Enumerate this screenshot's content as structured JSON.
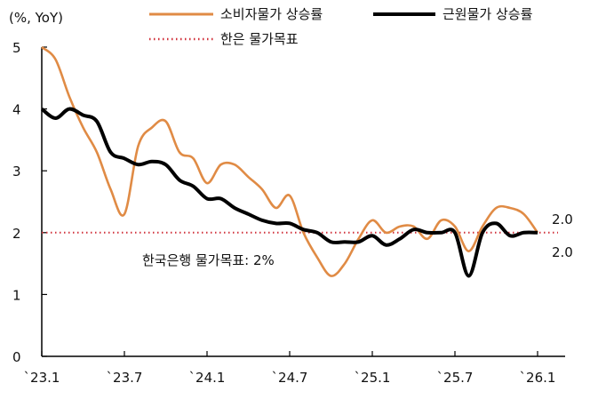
{
  "chart_data": {
    "type": "line",
    "ylabel": "(%, YoY)",
    "ylim": [
      0,
      5
    ],
    "yticks": [
      "0",
      "1",
      "2",
      "3",
      "4",
      "5"
    ],
    "x_start": "2023-01",
    "x_frequency": "monthly",
    "xtick_labels": [
      "`23.1",
      "`23.7",
      "`24.1",
      "`24.7",
      "`25.1",
      "`25.7",
      "`26.1"
    ],
    "grid": false,
    "legend_position": "top",
    "series": [
      {
        "name": "소비자물가 상승률",
        "color": "#e08b45",
        "values": [
          5.0,
          4.8,
          4.2,
          3.7,
          3.3,
          2.7,
          2.3,
          3.4,
          3.7,
          3.8,
          3.3,
          3.2,
          2.8,
          3.1,
          3.1,
          2.9,
          2.7,
          2.4,
          2.6,
          2.0,
          1.6,
          1.3,
          1.5,
          1.9,
          2.2,
          2.0,
          2.1,
          2.1,
          1.9,
          2.2,
          2.1,
          1.7,
          2.1,
          2.4,
          2.4,
          2.3,
          2.0
        ]
      },
      {
        "name": "근원물가 상승률",
        "color": "#000000",
        "values": [
          4.0,
          3.85,
          4.0,
          3.9,
          3.8,
          3.3,
          3.2,
          3.1,
          3.15,
          3.1,
          2.85,
          2.75,
          2.55,
          2.55,
          2.4,
          2.3,
          2.2,
          2.15,
          2.15,
          2.05,
          2.0,
          1.85,
          1.85,
          1.85,
          1.95,
          1.8,
          1.9,
          2.05,
          2.0,
          2.0,
          2.0,
          1.3,
          2.0,
          2.15,
          1.95,
          2.0,
          2.0
        ]
      },
      {
        "name": "한은 물가목표",
        "color": "#d0303a",
        "style": "dotted",
        "value": 2.0
      }
    ],
    "annotations": [
      "한국은행 물가목표: 2%"
    ],
    "end_labels": [
      "2.0",
      "2.0"
    ]
  }
}
